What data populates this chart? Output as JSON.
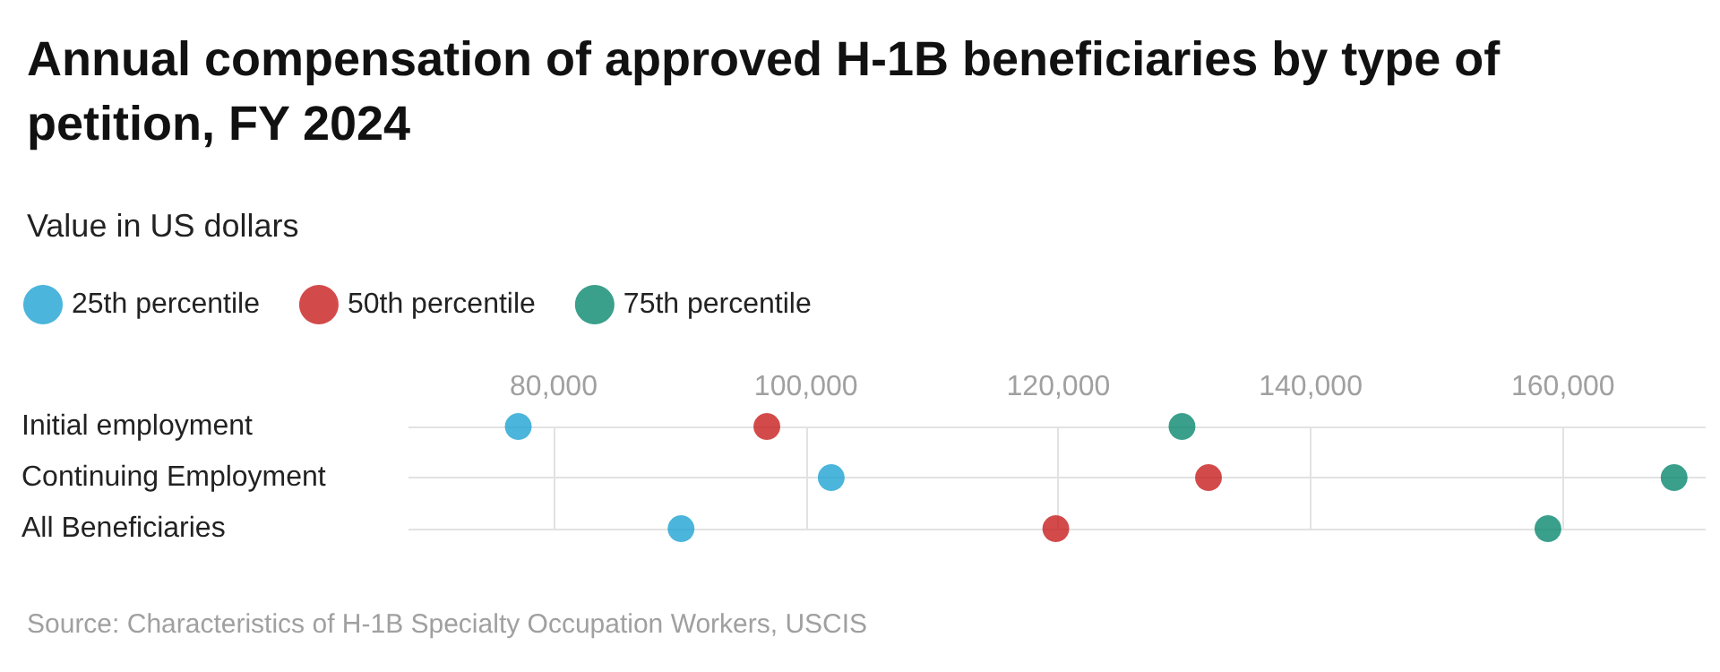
{
  "chart_data": {
    "type": "scatter",
    "title": "Annual compensation of approved H-1B beneficiaries by type of petition, FY 2024",
    "subtitle": "Value in US dollars",
    "orientation": "horizontal",
    "categories": [
      "Initial employment",
      "Continuing Employment",
      "All Beneficiaries"
    ],
    "series": [
      {
        "name": "25th percentile",
        "color": "#1ea3d2",
        "values": [
          77200,
          102000,
          90100
        ]
      },
      {
        "name": "50th percentile",
        "color": "#c71e1d",
        "values": [
          96900,
          131900,
          119800
        ]
      },
      {
        "name": "75th percentile",
        "color": "#09876e",
        "values": [
          129800,
          168800,
          158800
        ]
      }
    ],
    "xlim": [
      68500,
      171300
    ],
    "xticks": [
      {
        "value": 80000,
        "label": "80,000"
      },
      {
        "value": 100000,
        "label": "100,000"
      },
      {
        "value": 120000,
        "label": "120,000"
      },
      {
        "value": 140000,
        "label": "140,000"
      },
      {
        "value": 160000,
        "label": "160,000"
      }
    ],
    "grid": true,
    "legend": "top left",
    "marker": "circle",
    "annotations": [
      "Source: Characteristics of H-1B Specialty Occupation Workers, USCIS"
    ]
  }
}
